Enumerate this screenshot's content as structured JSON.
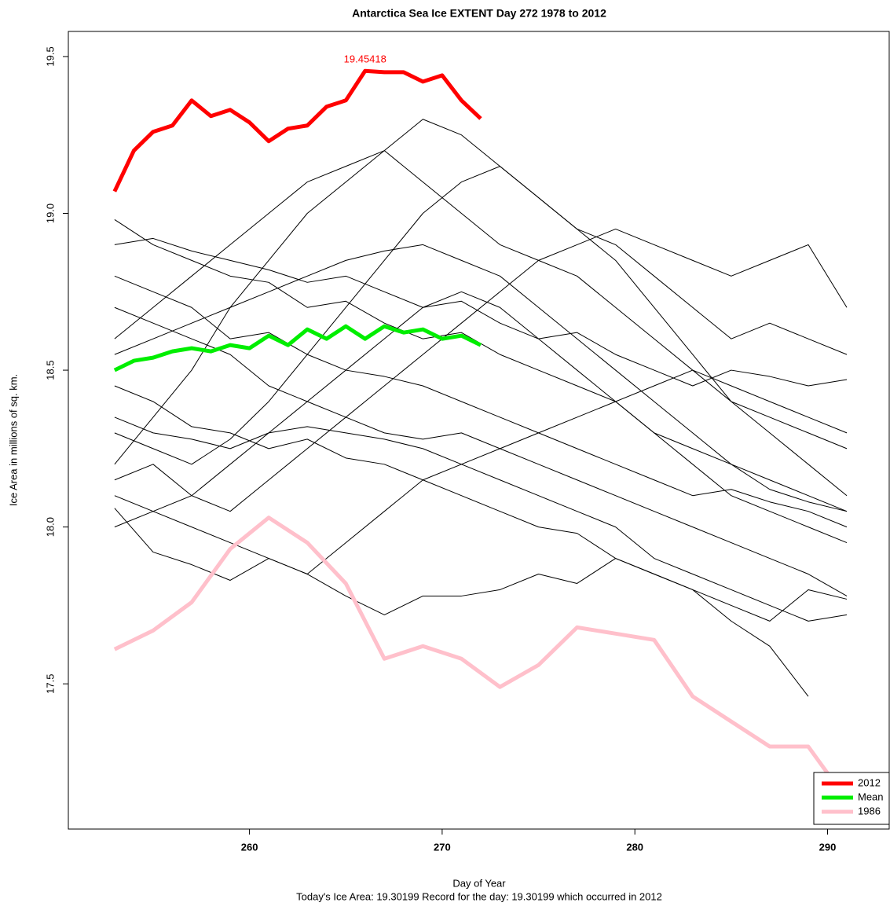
{
  "chart_data": {
    "type": "line",
    "title": "Antarctica Sea Ice EXTENT Day 272 1978 to 2012",
    "x_label": "Day of Year",
    "y_label": "Ice Area in millions of sq. km.",
    "subtitle": "Today's Ice Area: 19.30199    Record for the day: 19.30199 which occurred in 2012",
    "annotation": "19.45418",
    "xlim": [
      250.6,
      293.2
    ],
    "ylim": [
      17.037,
      19.58
    ],
    "xticks": [
      260,
      270,
      280,
      290
    ],
    "yticks": [
      17.5,
      {
        "value": 18,
        "label": "18.0"
      },
      18.5,
      {
        "value": 19,
        "label": "19.0"
      },
      19.5
    ],
    "legend": "bottom-right",
    "series": [
      {
        "color": "#000000",
        "x": [
          253,
          255,
          257,
          259,
          261,
          263,
          265,
          267,
          269,
          271,
          273,
          275,
          277,
          279,
          281,
          283,
          285,
          287,
          289,
          291
        ],
        "values": [
          18.98,
          18.9,
          18.85,
          18.8,
          18.78,
          18.7,
          18.72,
          18.65,
          18.6,
          18.62,
          18.55,
          18.5,
          18.45,
          18.4,
          18.3,
          18.25,
          18.2,
          18.12,
          18.08,
          18.05
        ]
      },
      {
        "color": "#000000",
        "x": [
          253,
          255,
          257,
          259,
          261,
          263,
          265,
          267,
          269,
          271,
          273,
          275,
          277,
          279,
          281,
          283,
          285,
          287,
          289,
          291
        ],
        "values": [
          18.06,
          17.92,
          17.88,
          17.83,
          17.9,
          17.85,
          17.78,
          17.72,
          17.78,
          17.78,
          17.8,
          17.85,
          17.82,
          17.9,
          17.85,
          17.8,
          17.75,
          17.7,
          17.8,
          17.77
        ]
      },
      {
        "color": "#000000",
        "x": [
          253,
          255,
          257,
          259,
          261,
          263,
          265,
          267,
          269,
          271,
          273,
          275,
          277,
          279,
          281,
          283,
          285,
          287,
          289,
          291
        ],
        "values": [
          18.2,
          18.35,
          18.5,
          18.7,
          18.85,
          19.0,
          19.1,
          19.2,
          19.3,
          19.25,
          19.15,
          19.05,
          18.95,
          18.85,
          18.7,
          18.55,
          18.4,
          18.3,
          18.2,
          18.1
        ]
      },
      {
        "color": "#000000",
        "x": [
          253,
          255,
          257,
          259,
          261,
          263,
          265,
          267,
          269,
          271,
          273,
          275,
          277,
          279,
          281,
          283,
          285,
          287,
          289,
          291
        ],
        "values": [
          18.9,
          18.92,
          18.88,
          18.85,
          18.82,
          18.78,
          18.8,
          18.75,
          18.7,
          18.72,
          18.65,
          18.6,
          18.62,
          18.55,
          18.5,
          18.45,
          18.5,
          18.48,
          18.45,
          18.47
        ]
      },
      {
        "color": "#000000",
        "x": [
          253,
          255,
          257,
          259,
          261,
          263,
          265,
          267,
          269,
          271,
          273,
          275,
          277,
          279,
          281,
          283,
          285,
          287,
          289
        ],
        "values": [
          18.45,
          18.4,
          18.32,
          18.3,
          18.25,
          18.28,
          18.22,
          18.2,
          18.15,
          18.1,
          18.05,
          18.0,
          17.98,
          17.9,
          17.85,
          17.8,
          17.7,
          17.62,
          17.46
        ]
      },
      {
        "color": "#000000",
        "x": [
          253,
          255,
          257,
          259,
          261,
          263,
          265,
          267,
          269,
          271,
          273,
          275,
          277,
          279,
          281,
          283,
          285,
          287,
          289,
          291
        ],
        "values": [
          18.3,
          18.25,
          18.2,
          18.28,
          18.4,
          18.55,
          18.7,
          18.85,
          19.0,
          19.1,
          19.15,
          19.05,
          18.95,
          18.9,
          18.8,
          18.7,
          18.6,
          18.65,
          18.6,
          18.55
        ]
      },
      {
        "color": "#000000",
        "x": [
          253,
          255,
          257,
          259,
          261,
          263,
          265,
          267,
          269,
          271,
          273,
          275,
          277,
          279,
          281,
          283,
          285,
          287,
          289,
          291
        ],
        "values": [
          18.7,
          18.65,
          18.6,
          18.55,
          18.45,
          18.4,
          18.35,
          18.3,
          18.28,
          18.3,
          18.25,
          18.2,
          18.15,
          18.1,
          18.05,
          18.0,
          17.95,
          17.9,
          17.85,
          17.78
        ]
      },
      {
        "color": "#000000",
        "x": [
          253,
          255,
          257,
          259,
          261,
          263,
          265,
          267,
          269,
          271,
          273,
          275,
          277,
          279,
          281,
          283,
          285,
          287,
          289,
          291
        ],
        "values": [
          18.15,
          18.2,
          18.1,
          18.05,
          18.15,
          18.25,
          18.35,
          18.45,
          18.55,
          18.65,
          18.75,
          18.85,
          18.9,
          18.95,
          18.9,
          18.85,
          18.8,
          18.85,
          18.9,
          18.7
        ]
      },
      {
        "color": "#000000",
        "x": [
          253,
          255,
          257,
          259,
          261,
          263,
          265,
          267,
          269,
          271,
          273,
          275,
          277,
          279,
          281,
          283,
          285,
          287,
          289,
          291
        ],
        "values": [
          18.55,
          18.6,
          18.65,
          18.7,
          18.75,
          18.8,
          18.85,
          18.88,
          18.9,
          18.85,
          18.8,
          18.7,
          18.6,
          18.5,
          18.4,
          18.3,
          18.2,
          18.15,
          18.1,
          18.05
        ]
      },
      {
        "color": "#000000",
        "x": [
          253,
          255,
          257,
          259,
          261,
          263,
          265,
          267,
          269,
          271,
          273,
          275,
          277,
          279,
          281,
          283,
          285,
          287,
          289,
          291
        ],
        "values": [
          18.8,
          18.75,
          18.7,
          18.6,
          18.62,
          18.55,
          18.5,
          18.48,
          18.45,
          18.4,
          18.35,
          18.3,
          18.25,
          18.2,
          18.15,
          18.1,
          18.12,
          18.08,
          18.05,
          18.0
        ]
      },
      {
        "color": "#000000",
        "x": [
          253,
          255,
          257,
          259,
          261,
          263,
          265,
          267,
          269,
          271,
          273,
          275,
          277,
          279,
          281,
          283,
          285,
          287,
          289,
          291
        ],
        "values": [
          18.0,
          18.05,
          18.1,
          18.2,
          18.3,
          18.4,
          18.5,
          18.6,
          18.7,
          18.75,
          18.7,
          18.6,
          18.5,
          18.4,
          18.3,
          18.2,
          18.1,
          18.05,
          18.0,
          17.95
        ]
      },
      {
        "color": "#000000",
        "x": [
          253,
          255,
          257,
          259,
          261,
          263,
          265,
          267,
          269,
          271,
          273,
          275,
          277,
          279,
          281,
          283,
          285,
          287,
          289,
          291
        ],
        "values": [
          18.35,
          18.3,
          18.28,
          18.25,
          18.3,
          18.32,
          18.3,
          18.28,
          18.25,
          18.2,
          18.15,
          18.1,
          18.05,
          18.0,
          17.9,
          17.85,
          17.8,
          17.75,
          17.7,
          17.72
        ]
      },
      {
        "color": "#000000",
        "x": [
          253,
          255,
          257,
          259,
          261,
          263,
          265,
          267,
          269,
          271,
          273,
          275,
          277,
          279,
          281,
          283,
          285,
          287,
          289,
          291
        ],
        "values": [
          18.6,
          18.7,
          18.8,
          18.9,
          19.0,
          19.1,
          19.15,
          19.2,
          19.1,
          19.0,
          18.9,
          18.85,
          18.8,
          18.7,
          18.6,
          18.5,
          18.4,
          18.35,
          18.3,
          18.25
        ]
      },
      {
        "color": "#000000",
        "x": [
          253,
          255,
          257,
          259,
          261,
          263,
          265,
          267,
          269,
          271,
          273,
          275,
          277,
          279,
          281,
          283,
          285,
          287,
          289,
          291
        ],
        "values": [
          18.1,
          18.05,
          18.0,
          17.95,
          17.9,
          17.85,
          17.95,
          18.05,
          18.15,
          18.2,
          18.25,
          18.3,
          18.35,
          18.4,
          18.45,
          18.5,
          18.45,
          18.4,
          18.35,
          18.3
        ]
      },
      {
        "name": "2012",
        "color": "#ff0000",
        "width": 5,
        "x": [
          253,
          254,
          255,
          256,
          257,
          258,
          259,
          260,
          261,
          262,
          263,
          264,
          265,
          266,
          267,
          268,
          269,
          270,
          271,
          272
        ],
        "values": [
          19.07,
          19.2,
          19.26,
          19.28,
          19.36,
          19.31,
          19.33,
          19.29,
          19.23,
          19.27,
          19.28,
          19.34,
          19.36,
          19.45418,
          19.45,
          19.45,
          19.42,
          19.44,
          19.36,
          19.30199
        ]
      },
      {
        "name": "Mean",
        "color": "#00ee00",
        "width": 5,
        "x": [
          253,
          254,
          255,
          256,
          257,
          258,
          259,
          260,
          261,
          262,
          263,
          264,
          265,
          266,
          267,
          268,
          269,
          270,
          271,
          272
        ],
        "values": [
          18.5,
          18.53,
          18.54,
          18.56,
          18.57,
          18.56,
          18.58,
          18.57,
          18.61,
          18.58,
          18.63,
          18.6,
          18.64,
          18.6,
          18.64,
          18.62,
          18.63,
          18.6,
          18.61,
          18.58
        ]
      },
      {
        "name": "1986",
        "color": "#ffc0cb",
        "width": 5,
        "x": [
          253,
          255,
          257,
          259,
          261,
          263,
          265,
          267,
          269,
          271,
          273,
          275,
          277,
          279,
          281,
          283,
          285,
          287,
          289,
          291
        ],
        "values": [
          17.61,
          17.67,
          17.76,
          17.93,
          18.03,
          17.95,
          17.82,
          17.58,
          17.62,
          17.58,
          17.49,
          17.56,
          17.68,
          17.66,
          17.64,
          17.46,
          17.38,
          17.3,
          17.3,
          17.13
        ]
      }
    ]
  }
}
